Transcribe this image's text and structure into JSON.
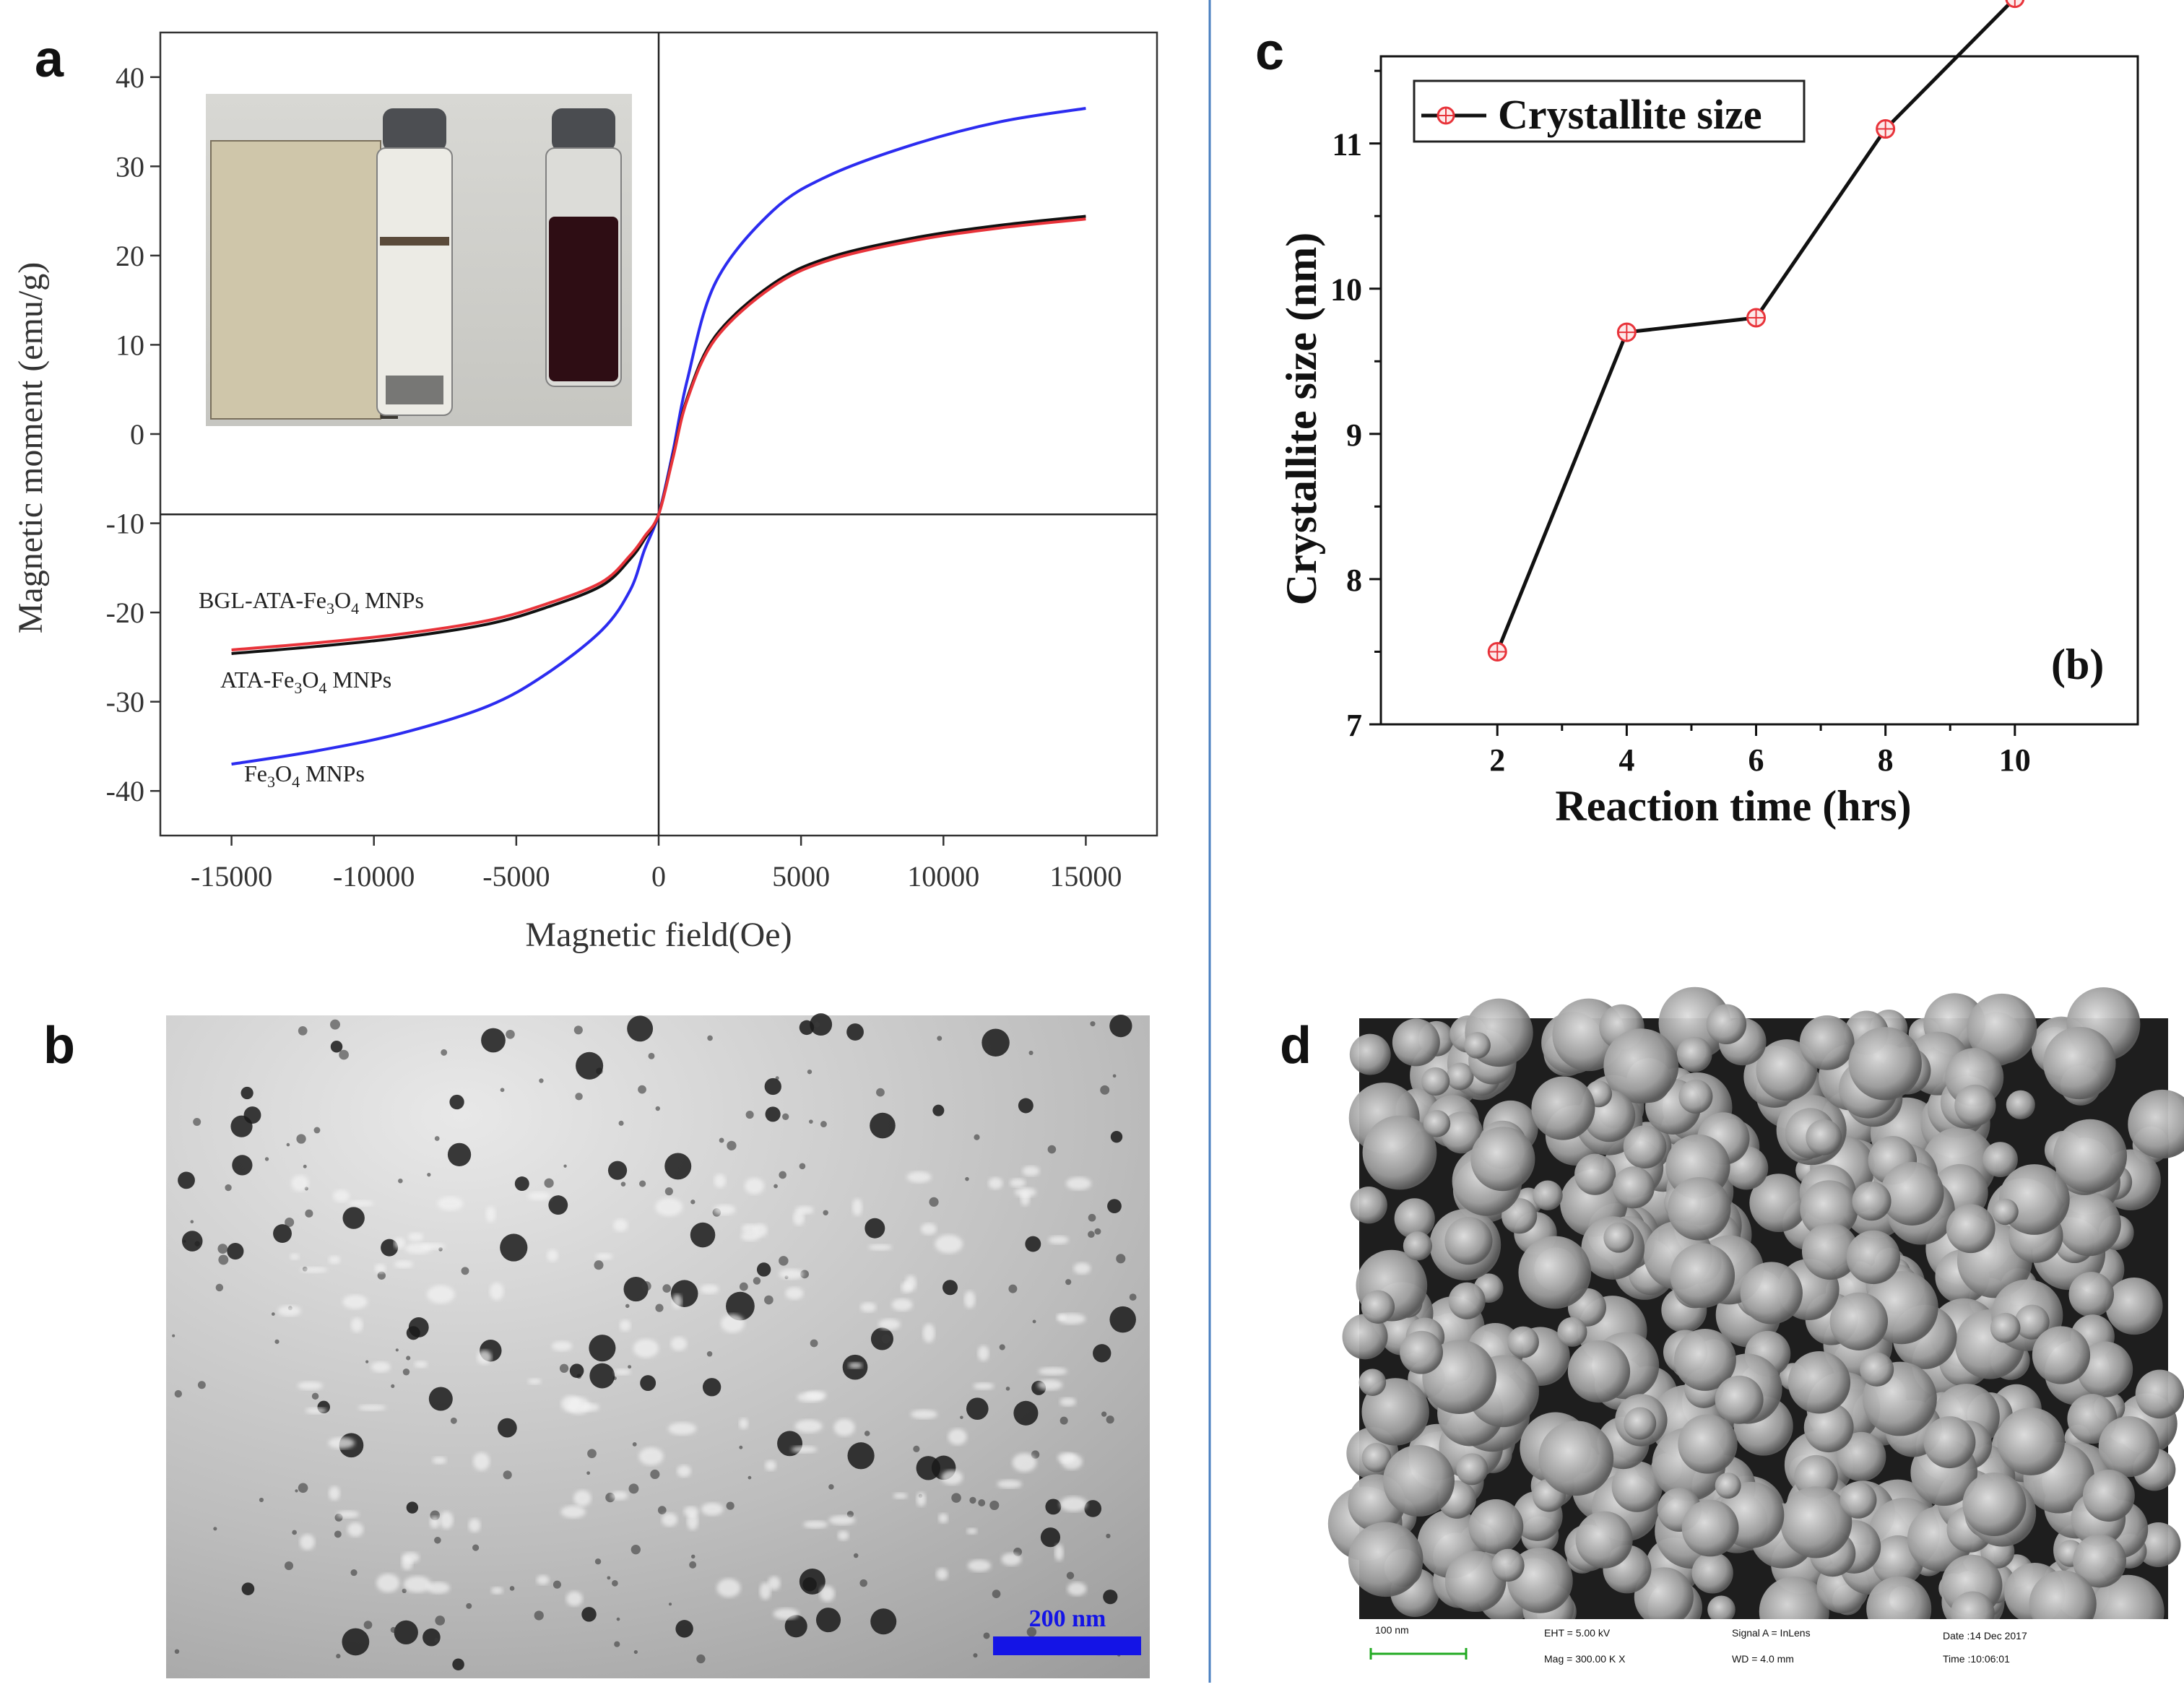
{
  "panels": {
    "a": {
      "letter": "a"
    },
    "b": {
      "letter": "b",
      "scale_bar_label": "200 nm"
    },
    "c": {
      "letter": "c"
    },
    "d": {
      "letter": "d"
    }
  },
  "colors": {
    "fe3o4": "#2c2cf0",
    "ata": "#111111",
    "bgl": "#e8333a",
    "marker": "#e8333a",
    "scale_bar_b": "#1414e6",
    "scale_bar_d": "#22aa22",
    "divider": "#4a7fc0"
  },
  "sem_info": {
    "scale_label": "100 nm",
    "eht": "EHT = 5.00 kV",
    "signal": "Signal A = InLens",
    "date": "Date :14 Dec 2017",
    "mag": "Mag = 300.00 K X",
    "wd": "WD = 4.0 mm",
    "time": "Time :10:06:01"
  },
  "chart_data": [
    {
      "type": "line",
      "panel": "a",
      "xlabel": "Magnetic field(Oe)",
      "ylabel": "Magnetic moment (emu/g)",
      "xlim": [
        -17500,
        17500
      ],
      "ylim": [
        -45,
        45
      ],
      "xticks": [
        -15000,
        -10000,
        -5000,
        0,
        5000,
        10000,
        15000
      ],
      "yticks": [
        -40,
        -30,
        -20,
        -10,
        0,
        10,
        20,
        30,
        40
      ],
      "x_tick_labels": [
        "-15000",
        "-10000",
        "-5000",
        "0",
        "5000",
        "10000",
        "15000"
      ],
      "y_tick_labels": [
        "-40",
        "-30",
        "-20",
        "-10",
        "0",
        "10",
        "20",
        "30",
        "40"
      ],
      "series_label_parts": {
        "bgl": {
          "a": "BGL-ATA-Fe",
          "s1": "3",
          "b": "O",
          "s2": "4",
          "c": " MNPs"
        },
        "ata": {
          "a": "ATA-Fe",
          "s1": "3",
          "b": "O",
          "s2": "4",
          "c": " MNPs"
        },
        "fe": {
          "a": "Fe",
          "s1": "3",
          "b": "O",
          "s2": "4",
          "c": " MNPs"
        }
      },
      "series": [
        {
          "name": "Fe3O4 MNPs",
          "x": [
            -15000,
            -12000,
            -9000,
            -6000,
            -4000,
            -2000,
            -1000,
            -500,
            0,
            500,
            1000,
            2000,
            4000,
            6000,
            9000,
            12000,
            15000
          ],
          "y": [
            -37,
            -35.5,
            -33.5,
            -30.5,
            -27,
            -22,
            -17.5,
            -13,
            -9,
            -2,
            6,
            17,
            25,
            29,
            32.5,
            35,
            36.5
          ]
        },
        {
          "name": "ATA-Fe3O4 MNPs",
          "x": [
            -15000,
            -12000,
            -9000,
            -6000,
            -4000,
            -2000,
            -1000,
            -500,
            0,
            500,
            1000,
            2000,
            4000,
            6000,
            9000,
            12000,
            15000
          ],
          "y": [
            -24.6,
            -23.8,
            -22.8,
            -21.3,
            -19.5,
            -17,
            -14,
            -11.8,
            -9,
            -2.5,
            4,
            11,
            16.8,
            19.8,
            22,
            23.4,
            24.4
          ]
        },
        {
          "name": "BGL-ATA-Fe3O4 MNPs",
          "x": [
            -15000,
            -12000,
            -9000,
            -6000,
            -4000,
            -2000,
            -1000,
            -500,
            0,
            500,
            1000,
            2000,
            4000,
            6000,
            9000,
            12000,
            15000
          ],
          "y": [
            -24.2,
            -23.4,
            -22.4,
            -20.9,
            -19.1,
            -16.6,
            -13.6,
            -11.5,
            -9,
            -2.7,
            3.8,
            10.7,
            16.5,
            19.5,
            21.7,
            23.1,
            24.1
          ]
        }
      ]
    },
    {
      "type": "line",
      "panel": "c",
      "xlabel": "Reaction time (hrs)",
      "ylabel": "Crystallite size (nm)",
      "annotation": "(b)",
      "xlim": [
        0.2,
        11.9
      ],
      "ylim": [
        7,
        11.6
      ],
      "xticks": [
        2,
        4,
        6,
        8,
        10
      ],
      "yticks": [
        7,
        8,
        9,
        10,
        11
      ],
      "x_tick_labels": [
        "2",
        "4",
        "6",
        "8",
        "10"
      ],
      "y_tick_labels": [
        "7",
        "8",
        "9",
        "10",
        "11"
      ],
      "x": [
        2,
        4,
        6,
        8,
        10
      ],
      "series": [
        {
          "name": "Crystallite size",
          "values": [
            7.5,
            9.7,
            9.8,
            11.1,
            12
          ]
        }
      ]
    }
  ]
}
